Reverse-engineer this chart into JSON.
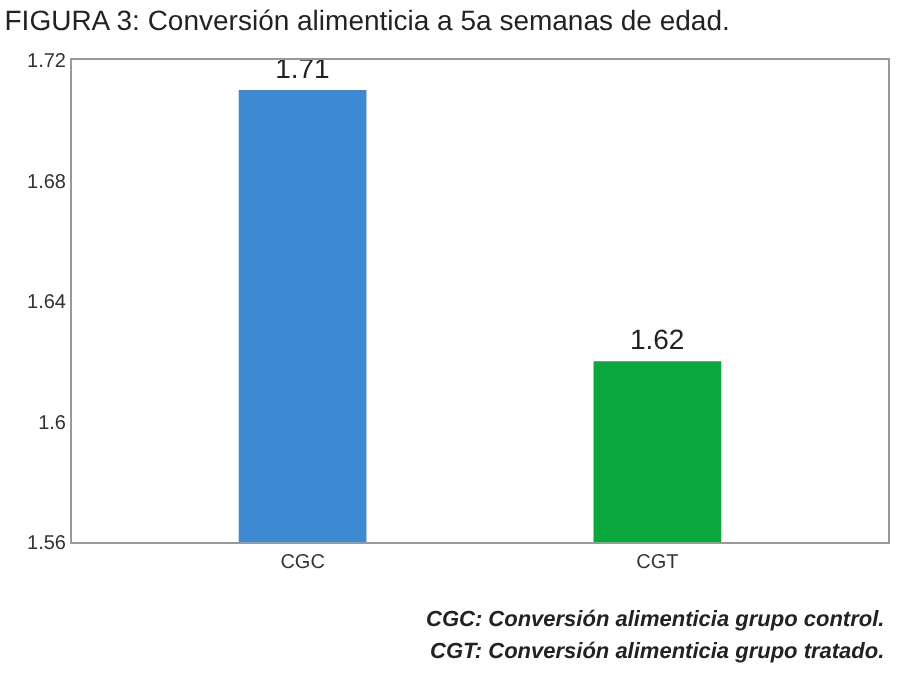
{
  "chart_data": {
    "type": "bar",
    "title": "FIGURA 3: Conversión alimenticia a 5a semanas de edad.",
    "categories": [
      "CGC",
      "CGT"
    ],
    "values": [
      1.71,
      1.62
    ],
    "colors": [
      "#3d89d2",
      "#0aa83c"
    ],
    "ylim": [
      1.56,
      1.72
    ],
    "yticks": [
      1.56,
      1.6,
      1.64,
      1.68,
      1.72
    ],
    "grid": false,
    "data_labels": true,
    "annotations": [
      "CGC: Conversión alimenticia grupo control.",
      "CGT: Conversión alimenticia grupo tratado."
    ]
  }
}
